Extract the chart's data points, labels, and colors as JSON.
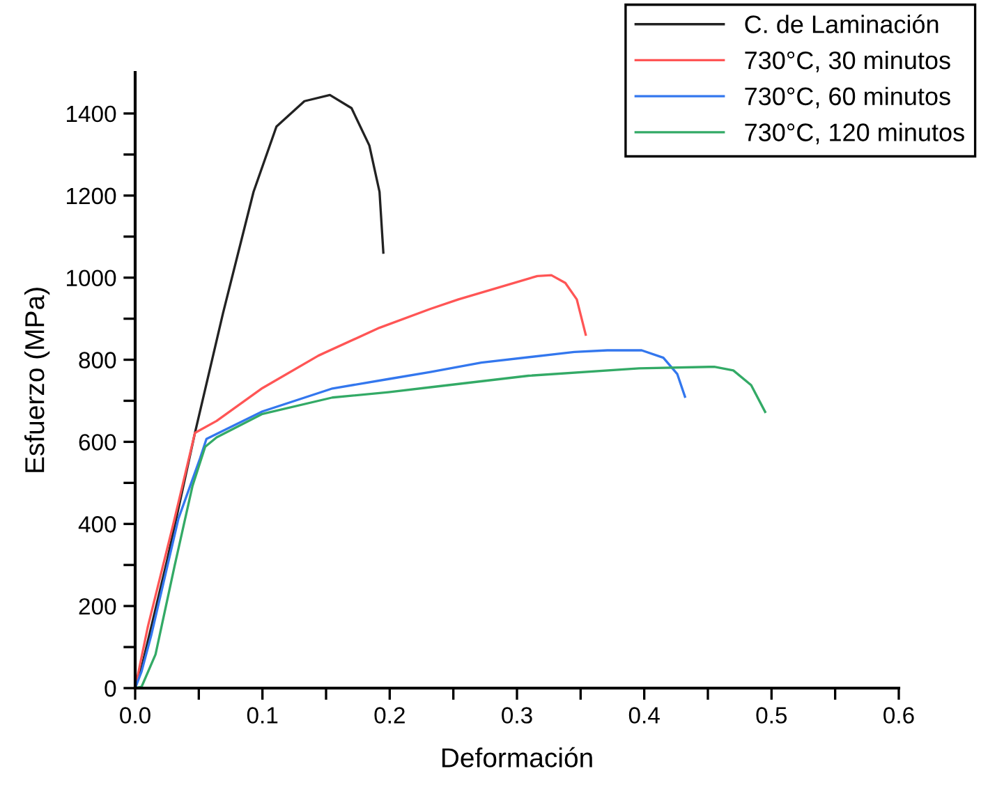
{
  "chart_data": {
    "type": "line",
    "xlabel": "Deformación",
    "ylabel": "Esfuerzo (MPa)",
    "xlim": [
      0,
      0.6
    ],
    "ylim": [
      0,
      1500
    ],
    "xticks": [
      {
        "value": 0,
        "label": "0.0"
      },
      {
        "value": 0.05,
        "label": null
      },
      {
        "value": 0.1,
        "label": "0.1"
      },
      {
        "value": 0.15,
        "label": null
      },
      {
        "value": 0.2,
        "label": "0.2"
      },
      {
        "value": 0.25,
        "label": null
      },
      {
        "value": 0.3,
        "label": "0.3"
      },
      {
        "value": 0.35,
        "label": null
      },
      {
        "value": 0.4,
        "label": "0.4"
      },
      {
        "value": 0.45,
        "label": null
      },
      {
        "value": 0.5,
        "label": "0.5"
      },
      {
        "value": 0.55,
        "label": null
      },
      {
        "value": 0.6,
        "label": "0.6"
      }
    ],
    "yticks": [
      0,
      {
        "value": 100,
        "label": null
      },
      200,
      {
        "value": 300,
        "label": null
      },
      400,
      {
        "value": 500,
        "label": null
      },
      600,
      {
        "value": 700,
        "label": null
      },
      800,
      {
        "value": 900,
        "label": null
      },
      1000,
      {
        "value": 1100,
        "label": null
      },
      1200,
      {
        "value": 1300,
        "label": null
      },
      1400
    ],
    "grid": false,
    "legend": "top right",
    "marker": "none",
    "line_style": "solid",
    "series": [
      {
        "name": "C. de Laminación",
        "color": "#222222",
        "x": [
          0,
          0.005,
          0.025,
          0.047,
          0.069,
          0.093,
          0.111,
          0.133,
          0.153,
          0.17,
          0.184,
          0.192,
          0.195
        ],
        "values": [
          0,
          50,
          310,
          622,
          913,
          1209,
          1368,
          1430,
          1445,
          1413,
          1322,
          1209,
          1061
        ]
      },
      {
        "name": "730°C, 30 minutos",
        "color": "#ff5555",
        "x": [
          0,
          0.01,
          0.03,
          0.047,
          0.064,
          0.1,
          0.144,
          0.192,
          0.232,
          0.254,
          0.316,
          0.327,
          0.338,
          0.347,
          0.354
        ],
        "values": [
          0,
          150,
          400,
          622,
          651,
          731,
          810,
          878,
          924,
          947,
          1004,
          1006,
          987,
          947,
          861
        ]
      },
      {
        "name": "730°C, 60 minutos",
        "color": "#3377ee",
        "x": [
          0,
          0.005,
          0.0125,
          0.034,
          0.051,
          0.056,
          0.1,
          0.155,
          0.199,
          0.232,
          0.272,
          0.345,
          0.371,
          0.398,
          0.415,
          0.426,
          0.432
        ],
        "values": [
          0,
          40,
          127,
          413,
          560,
          607,
          674,
          730,
          753,
          770,
          793,
          819,
          823,
          823,
          805,
          765,
          710
        ]
      },
      {
        "name": "730°C, 120 minutos",
        "color": "#33aa66",
        "x": [
          0,
          0.005,
          0.016,
          0.031,
          0.045,
          0.055,
          0.064,
          0.1,
          0.155,
          0.199,
          0.232,
          0.309,
          0.396,
          0.455,
          0.47,
          0.484,
          0.495
        ],
        "values": [
          0,
          3,
          82,
          298,
          492,
          588,
          611,
          668,
          708,
          721,
          733,
          761,
          779,
          783,
          774,
          738,
          673
        ]
      }
    ]
  }
}
